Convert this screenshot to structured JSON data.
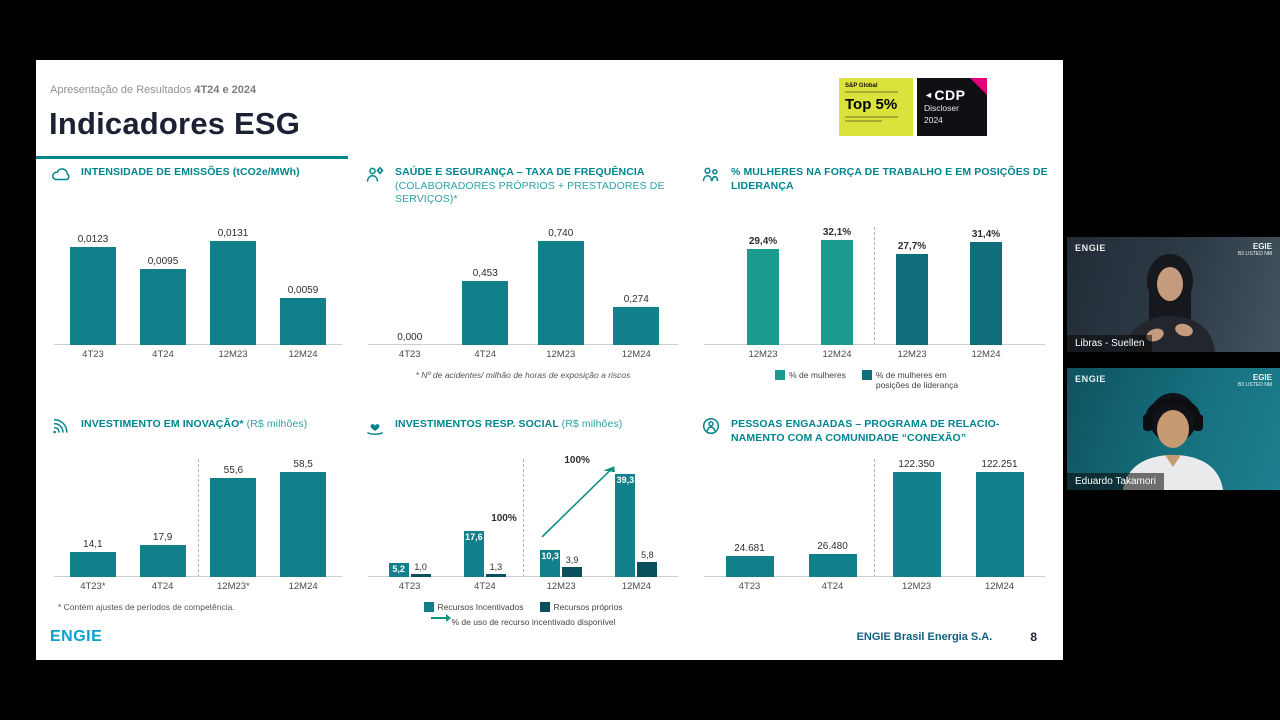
{
  "colors": {
    "teal_bar": "#12808B",
    "teal_bar_light": "#1A9B8E",
    "teal_bar_dark": "#0F6E7A",
    "navy_bar_dark": "#0C4F5C",
    "accent_teal": "#00858F",
    "title_navy": "#1B2233",
    "line_green": "#0E9480",
    "sp_badge_yellow": "#DCE23C",
    "cdp_pink": "#E5007D"
  },
  "slide": {
    "header_prefix": "Apresentação de Resultados ",
    "header_bold": "4T24 e 2024",
    "title": "Indicadores ESG",
    "logo_text": "ENGIE",
    "footer_company": "ENGIE Brasil Energia S.A.",
    "page_number": "8"
  },
  "badges": {
    "sp_brand": "S&P Global",
    "sp_main": "Top 5%",
    "cdp_mark": "◄",
    "cdp_brand": "CDP",
    "cdp_line1": "Discloser",
    "cdp_line2": "2024"
  },
  "videos": [
    {
      "label": "Libras - Suellen",
      "logo": "ENGIE",
      "listing": "EGIE",
      "listing_sub": "B3 LISTED NM"
    },
    {
      "label": "Eduardo Takamori",
      "logo": "ENGIE",
      "listing": "EGIE",
      "listing_sub": "B3 LISTED NM"
    }
  ],
  "chart_data": [
    {
      "type": "bar",
      "title": "INTENSIDADE DE EMISSÕES (tCO2e/MWh)",
      "categories": [
        "4T23",
        "4T24",
        "12M23",
        "12M24"
      ],
      "values": [
        0.0123,
        0.0095,
        0.0131,
        0.0059
      ],
      "labels": [
        "0,0123",
        "0,0095",
        "0,0131",
        "0,0059"
      ],
      "ymax": 0.0148,
      "color": "#12808B"
    },
    {
      "type": "bar",
      "title": "SAÚDE E SEGURANÇA – TAXA DE FREQUÊNCIA",
      "title_sub": "(COLABORADORES PRÓPRIOS + PRESTADORES DE SERVIÇOS)*",
      "categories": [
        "4T23",
        "4T24",
        "12M23",
        "12M24"
      ],
      "values": [
        0.0,
        0.453,
        0.74,
        0.274
      ],
      "labels": [
        "0,000",
        "0,453",
        "0,740",
        "0,274"
      ],
      "ymax": 0.84,
      "color": "#12808B",
      "footnote": "* Nº de acidentes/ milhão de horas de exposição a riscos"
    },
    {
      "type": "bar",
      "title": "% MULHERES NA FORÇA DE TRABALHO E EM POSIÇÕES DE LIDERANÇA",
      "ymax": 36,
      "groups": [
        {
          "categories": [
            "12M23",
            "12M24"
          ],
          "values": [
            29.4,
            32.1
          ],
          "labels": [
            "29,4%",
            "32,1%"
          ],
          "color": "#1A9B8E"
        },
        {
          "categories": [
            "12M23",
            "12M24"
          ],
          "values": [
            27.7,
            31.4
          ],
          "labels": [
            "27,7%",
            "31,4%"
          ],
          "color": "#0F6E7A"
        }
      ],
      "legend": [
        "% de mulheres",
        "% de mulheres em posições de liderança"
      ]
    },
    {
      "type": "bar",
      "title": "INVESTIMENTO EM INOVAÇÃO*",
      "title_sub": "(R$ milhões)",
      "categories": [
        "4T23*",
        "4T24",
        "12M23*",
        "12M24"
      ],
      "values": [
        14.1,
        17.9,
        55.6,
        58.5
      ],
      "labels": [
        "14,1",
        "17,9",
        "55,6",
        "58,5"
      ],
      "ymax": 66,
      "color": "#12808B",
      "separator_after": 1,
      "footnote": "* Contém ajustes de períodos de competência."
    },
    {
      "type": "bar",
      "title": "INVESTIMENTOS RESP. SOCIAL",
      "title_sub": "(R$ milhões)",
      "categories": [
        "4T23",
        "4T24",
        "12M23",
        "12M24"
      ],
      "ymax": 45,
      "separator_after": 1,
      "series": [
        {
          "name": "Recursos Incentivados",
          "values": [
            5.2,
            17.6,
            10.3,
            39.3
          ],
          "labels": [
            "5,2",
            "17,6",
            "10,3",
            "39,3"
          ],
          "color": "#12808B",
          "labels_inside": true
        },
        {
          "name": "Recursos próprios",
          "values": [
            1.0,
            1.3,
            3.9,
            5.8
          ],
          "labels": [
            "1,0",
            "1,3",
            "3,9",
            "5,8"
          ],
          "color": "#0C4F5C",
          "labels_inside": false
        }
      ],
      "line": {
        "name": "% de uso de recurso incentivado disponível",
        "values": [
          100,
          100
        ],
        "labels": [
          "100%",
          "100%"
        ],
        "color": "#0E9480"
      }
    },
    {
      "type": "bar",
      "title": "PESSOAS ENGAJADAS – PROGRAMA DE RELACIO-NAMENTO COM A COMUNIDADE “CONEXÃO”",
      "categories": [
        "4T23",
        "4T24",
        "12M23",
        "12M24"
      ],
      "values": [
        24681,
        26480,
        122350,
        122251
      ],
      "labels": [
        "24.681",
        "26.480",
        "122.350",
        "122.251"
      ],
      "ymax": 138000,
      "color": "#12808B",
      "separator_after": 1
    }
  ]
}
